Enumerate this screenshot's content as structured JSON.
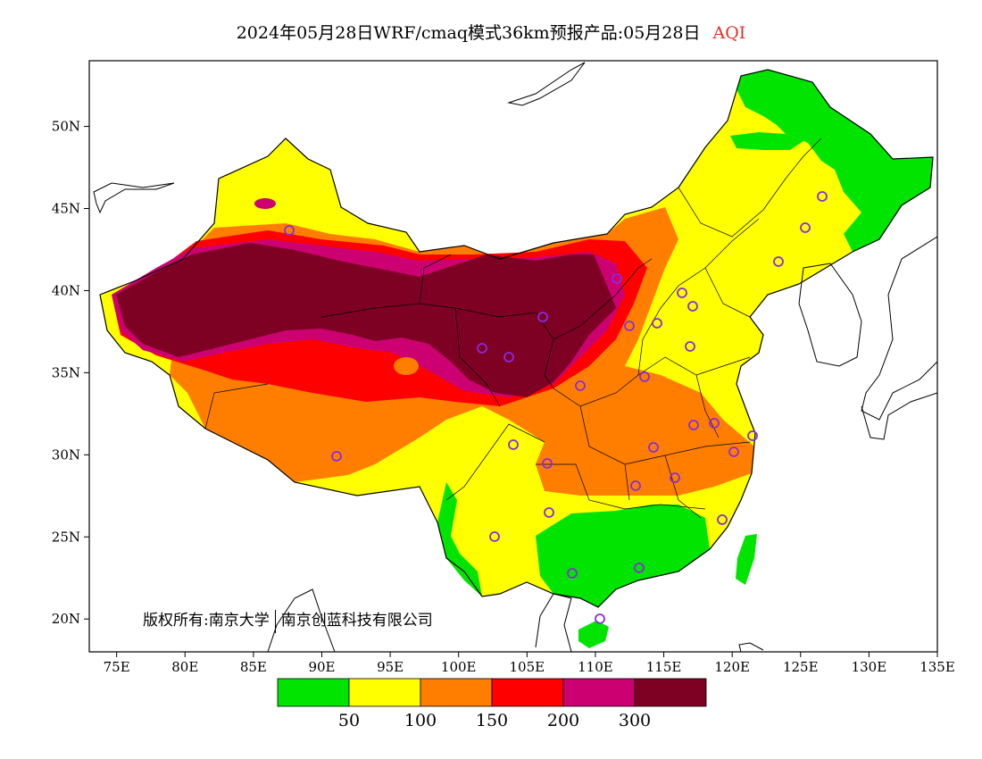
{
  "title": {
    "main": "2024年05月28日WRF/cmaq模式36km预报产品:05月28日",
    "variable": "AQI"
  },
  "axes": {
    "x_ticks": [
      "75E",
      "80E",
      "85E",
      "90E",
      "95E",
      "100E",
      "105E",
      "110E",
      "115E",
      "120E",
      "125E",
      "130E",
      "135E"
    ],
    "y_ticks": [
      "50N",
      "45N",
      "40N",
      "35N",
      "30N",
      "25N",
      "20N"
    ],
    "lon_range": [
      73,
      135
    ],
    "lat_range": [
      18,
      54
    ]
  },
  "credit": {
    "owner": "版权所有:南京大学",
    "partner": "南京创蓝科技有限公司"
  },
  "legend": {
    "thresholds": [
      "50",
      "100",
      "150",
      "200",
      "300"
    ],
    "colors": [
      "#00e400",
      "#ffff00",
      "#ff7e00",
      "#ff0000",
      "#cc0070",
      "#7e0023"
    ]
  },
  "colors": {
    "station_marker": "#8a2be2",
    "title_variable": "#e0302a"
  }
}
